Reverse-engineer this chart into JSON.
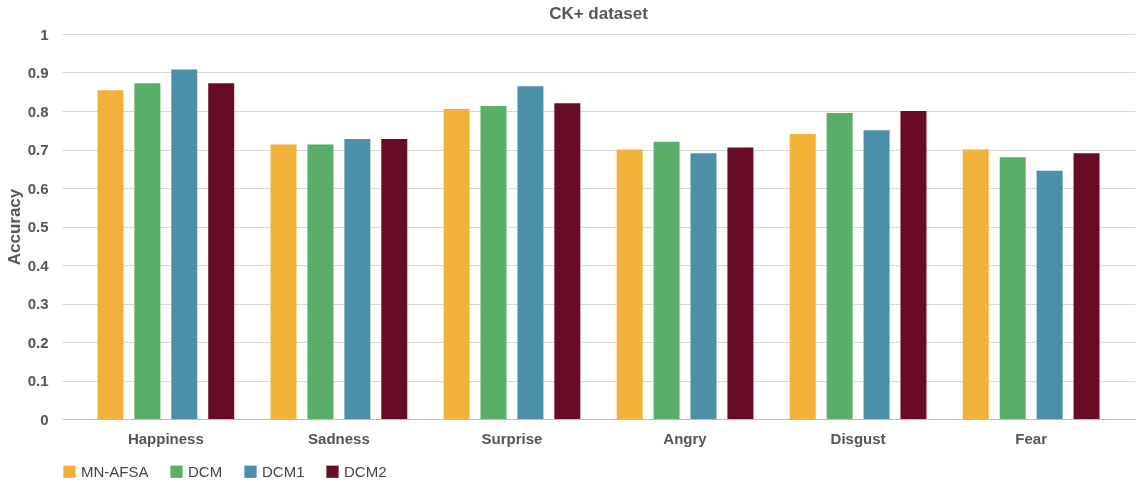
{
  "chart_data": {
    "type": "bar",
    "title": "CK+ dataset",
    "ylabel": "Accuracy",
    "categories": [
      "Happiness",
      "Sadness",
      "Surprise",
      "Angry",
      "Disgust",
      "Fear"
    ],
    "series": [
      {
        "name": "MN-AFSA",
        "color": "#f0b239",
        "values": [
          0.854,
          0.713,
          0.805,
          0.7,
          0.74,
          0.7
        ]
      },
      {
        "name": "DCM",
        "color": "#59af67",
        "values": [
          0.872,
          0.713,
          0.813,
          0.72,
          0.795,
          0.68
        ]
      },
      {
        "name": "DCM1",
        "color": "#4b8fa8",
        "values": [
          0.908,
          0.727,
          0.864,
          0.69,
          0.75,
          0.645
        ]
      },
      {
        "name": "DCM2",
        "color": "#680c26",
        "values": [
          0.872,
          0.727,
          0.82,
          0.705,
          0.8,
          0.69
        ]
      }
    ],
    "ylim": [
      0,
      1
    ],
    "yticks": [
      0,
      0.1,
      0.2,
      0.3,
      0.4,
      0.5,
      0.6,
      0.7,
      0.8,
      0.9,
      1
    ],
    "grid": "y",
    "legend": "bottom"
  }
}
